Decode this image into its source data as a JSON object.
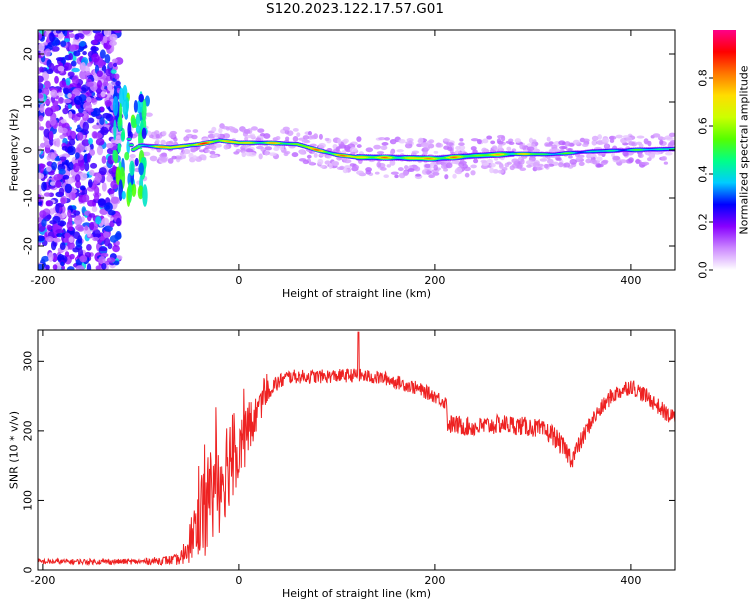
{
  "title": "S120.2023.122.17.57.G01",
  "chart_data": [
    {
      "type": "heatmap",
      "xlabel": "Height of straight line (km)",
      "ylabel": "Frequency (Hz)",
      "xlim": [
        -205,
        445
      ],
      "ylim": [
        -25,
        25
      ],
      "xticks": [
        -200,
        0,
        200,
        400
      ],
      "yticks": [
        -20,
        -10,
        0,
        10,
        20
      ],
      "colorbar": {
        "label": "Normalized spectral amplitude",
        "range": [
          0.0,
          1.0
        ],
        "ticks": [
          0.0,
          0.2,
          0.4,
          0.6,
          0.8
        ],
        "colors": [
          "#ffffff",
          "#cc88ff",
          "#8800ff",
          "#0000ff",
          "#00ccff",
          "#00ff88",
          "#55ff00",
          "#ccff00",
          "#ffdd00",
          "#ff7700",
          "#ff0000",
          "#ff0088"
        ]
      },
      "ridge": {
        "x": [
          -125,
          -115,
          -108,
          -100,
          -90,
          -70,
          -40,
          -20,
          0,
          30,
          60,
          80,
          100,
          120,
          160,
          200,
          240,
          280,
          320,
          360,
          400,
          440
        ],
        "y": [
          12,
          4,
          0,
          1,
          0.8,
          0.5,
          1.2,
          2,
          1.5,
          1.5,
          1.2,
          0,
          -1,
          -1.5,
          -1.6,
          -1.8,
          -1.2,
          -0.8,
          -0.9,
          -0.3,
          0,
          0.2
        ],
        "peak_amplitude": [
          0.8,
          0.6,
          0.55,
          0.6,
          0.7,
          0.95,
          0.9,
          0.95,
          0.85,
          0.8,
          0.75,
          0.9,
          0.85,
          0.95,
          0.8,
          0.95,
          0.75,
          0.85,
          0.6,
          0.5,
          0.55,
          0.6
        ]
      },
      "noise_region": {
        "x_range": [
          -205,
          -122
        ],
        "amplitude": 0.3
      }
    },
    {
      "type": "line",
      "xlabel": "Height of straight line (km)",
      "ylabel": "SNR (10 * v/v)",
      "xlim": [
        -205,
        445
      ],
      "ylim": [
        0,
        345
      ],
      "xticks": [
        -200,
        0,
        200,
        400
      ],
      "yticks": [
        0,
        100,
        200,
        300
      ],
      "color": "#ee2222",
      "envelope": {
        "x": [
          -205,
          -150,
          -100,
          -60,
          -50,
          -40,
          -30,
          -20,
          -10,
          0,
          10,
          20,
          30,
          50,
          80,
          100,
          120,
          150,
          180,
          200,
          212,
          213,
          240,
          270,
          300,
          320,
          340,
          360,
          380,
          400,
          420,
          440
        ],
        "y": [
          12,
          12,
          12,
          15,
          40,
          80,
          100,
          130,
          160,
          180,
          200,
          230,
          260,
          278,
          278,
          279,
          280,
          275,
          262,
          250,
          240,
          210,
          205,
          210,
          205,
          195,
          160,
          215,
          250,
          265,
          245,
          220
        ],
        "noise": [
          4,
          4,
          4,
          8,
          30,
          60,
          80,
          80,
          70,
          55,
          40,
          25,
          15,
          10,
          10,
          10,
          10,
          10,
          10,
          10,
          10,
          14,
          14,
          14,
          14,
          15,
          15,
          12,
          12,
          12,
          12,
          12
        ]
      },
      "spike": {
        "x": 122,
        "y": 342
      }
    }
  ]
}
